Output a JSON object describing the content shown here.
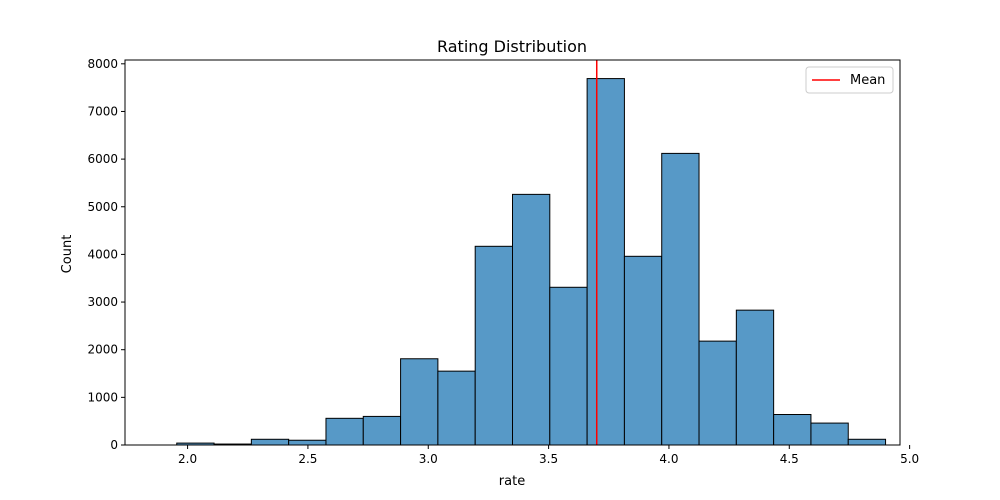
{
  "chart_data": {
    "type": "bar",
    "title": "Rating Distribution",
    "xlabel": "rate",
    "ylabel": "Count",
    "xlim": [
      1.74,
      4.96
    ],
    "ylim": [
      0,
      8080
    ],
    "xticks": [
      2.0,
      2.5,
      3.0,
      3.5,
      4.0,
      4.5,
      5.0
    ],
    "xtick_labels": [
      "2.0",
      "2.5",
      "3.0",
      "3.5",
      "4.0",
      "4.5",
      "5.0"
    ],
    "yticks": [
      0,
      1000,
      2000,
      3000,
      4000,
      5000,
      6000,
      7000,
      8000
    ],
    "ytick_labels": [
      "0",
      "1000",
      "2000",
      "3000",
      "4000",
      "5000",
      "6000",
      "7000",
      "8000"
    ],
    "bins": [
      {
        "x0": 1.8,
        "x1": 1.955,
        "count": 0
      },
      {
        "x0": 1.955,
        "x1": 2.11,
        "count": 40
      },
      {
        "x0": 2.11,
        "x1": 2.265,
        "count": 20
      },
      {
        "x0": 2.265,
        "x1": 2.42,
        "count": 120
      },
      {
        "x0": 2.42,
        "x1": 2.575,
        "count": 100
      },
      {
        "x0": 2.575,
        "x1": 2.73,
        "count": 560
      },
      {
        "x0": 2.73,
        "x1": 2.885,
        "count": 600
      },
      {
        "x0": 2.885,
        "x1": 3.04,
        "count": 1810
      },
      {
        "x0": 3.04,
        "x1": 3.195,
        "count": 1550
      },
      {
        "x0": 3.195,
        "x1": 3.35,
        "count": 4170
      },
      {
        "x0": 3.35,
        "x1": 3.505,
        "count": 5260
      },
      {
        "x0": 3.505,
        "x1": 3.66,
        "count": 3310
      },
      {
        "x0": 3.66,
        "x1": 3.815,
        "count": 7690
      },
      {
        "x0": 3.815,
        "x1": 3.97,
        "count": 3960
      },
      {
        "x0": 3.97,
        "x1": 4.125,
        "count": 6120
      },
      {
        "x0": 4.125,
        "x1": 4.28,
        "count": 2180
      },
      {
        "x0": 4.28,
        "x1": 4.435,
        "count": 2830
      },
      {
        "x0": 4.435,
        "x1": 4.59,
        "count": 640
      },
      {
        "x0": 4.59,
        "x1": 4.745,
        "count": 460
      },
      {
        "x0": 4.745,
        "x1": 4.9,
        "count": 120
      }
    ],
    "mean": {
      "value": 3.7,
      "label": "Mean",
      "color": "#ff0000"
    },
    "bar_color": "#5799c7",
    "edge_color": "#000000",
    "legend": {
      "position": "top-right",
      "entries": [
        "Mean"
      ]
    },
    "grid": false
  }
}
